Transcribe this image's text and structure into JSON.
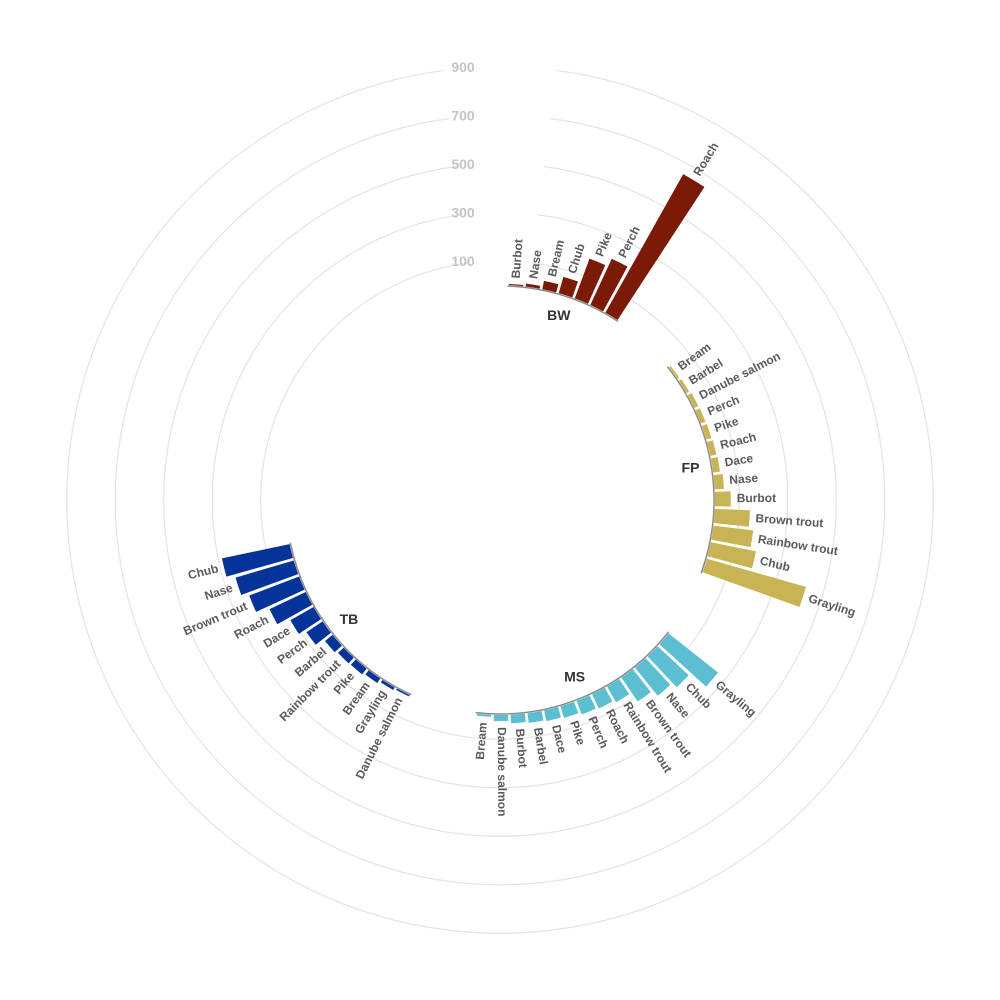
{
  "chart_data": {
    "type": "bar",
    "layout": "circular",
    "title": "",
    "radial_ticks": [
      100,
      300,
      500,
      700,
      900
    ],
    "radial_range": [
      0,
      900
    ],
    "grid": true,
    "legend": "none",
    "groups": [
      {
        "name": "BW",
        "color": "#7b1a06",
        "categories": [
          "Burbot",
          "Nase",
          "Bream",
          "Chub",
          "Pike",
          "Perch",
          "Roach"
        ],
        "values": [
          5,
          12,
          35,
          70,
          175,
          210,
          655
        ]
      },
      {
        "name": "FP",
        "color": "#c9b455",
        "categories": [
          "Bream",
          "Barbel",
          "Danube salmon",
          "Perch",
          "Pike",
          "Roach",
          "Dace",
          "Nase",
          "Burbot",
          "Brown trout",
          "Rainbow trout",
          "Chub",
          "Grayling"
        ],
        "values": [
          8,
          12,
          18,
          20,
          22,
          25,
          28,
          38,
          65,
          145,
          165,
          190,
          425
        ]
      },
      {
        "name": "MS",
        "color": "#5bbfd1",
        "categories": [
          "Grayling",
          "Chub",
          "Nase",
          "Brown trout",
          "Rainbow trout",
          "Roach",
          "Perch",
          "Pike",
          "Dace",
          "Barbel",
          "Burbot",
          "Danube salmon",
          "Bream"
        ],
        "values": [
          260,
          175,
          150,
          120,
          75,
          65,
          60,
          50,
          45,
          40,
          35,
          25,
          8
        ]
      },
      {
        "name": "TB",
        "color": "#06339a",
        "categories": [
          "Danube salmon",
          "Grayling",
          "Bream",
          "Pike",
          "Rainbow trout",
          "Barbel",
          "Perch",
          "Dace",
          "Roach",
          "Brown trout",
          "Nase",
          "Chub"
        ],
        "values": [
          6,
          12,
          22,
          30,
          32,
          40,
          80,
          110,
          165,
          220,
          250,
          285
        ]
      }
    ]
  }
}
